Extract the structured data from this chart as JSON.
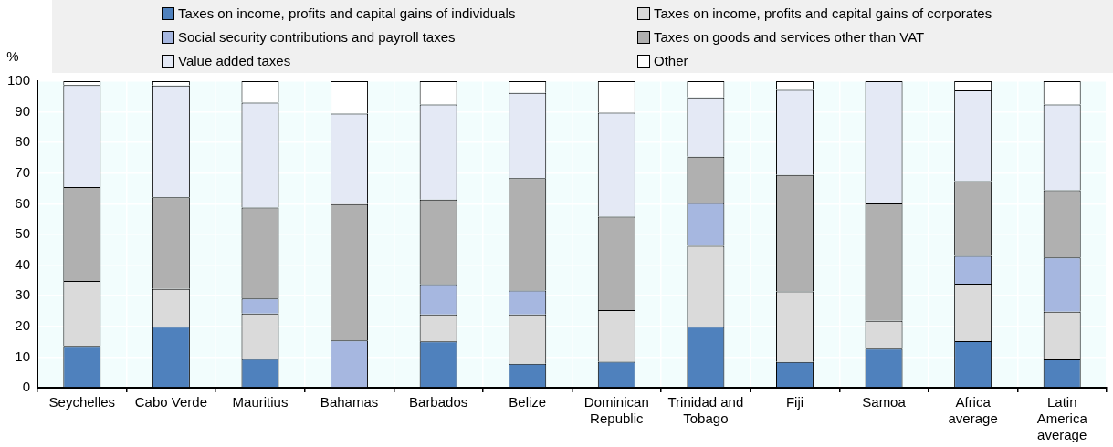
{
  "chart_data": {
    "type": "bar",
    "stacked": true,
    "ylabel": "%",
    "legend": "top",
    "grid": true,
    "categories": [
      "Seychelles",
      "Cabo Verde",
      "Mauritius",
      "Bahamas",
      "Barbados",
      "Belize",
      "Dominican Republic",
      "Trinidad and Tobago",
      "Fiji",
      "Samoa",
      "Africa average",
      "Latin America average"
    ],
    "ylim": [
      0,
      100
    ],
    "yticks": [
      0,
      10,
      20,
      30,
      40,
      50,
      60,
      70,
      80,
      90,
      100
    ],
    "series": [
      {
        "name": "Taxes on income, profits and capital gains of individuals",
        "color": "#4f81bd",
        "values": [
          13.6,
          19.9,
          9.4,
          0,
          15.1,
          7.8,
          8.5,
          19.9,
          8.4,
          12.7,
          15.2,
          9.2
        ]
      },
      {
        "name": "Taxes on income, profits and capital gains of corporates",
        "color": "#dadada",
        "values": [
          21.2,
          12.3,
          14.8,
          0,
          8.8,
          16.1,
          16.8,
          26.4,
          23.0,
          9.1,
          18.7,
          15.6
        ]
      },
      {
        "name": "Social security contributions and payroll taxes",
        "color": "#a6b7e0",
        "values": [
          0,
          0,
          4.9,
          15.4,
          9.9,
          7.8,
          0,
          14.0,
          0,
          0,
          9.1,
          17.7
        ]
      },
      {
        "name": "Taxes on goods and services other than VAT",
        "color": "#b0b0b0",
        "values": [
          30.7,
          29.9,
          29.7,
          44.5,
          27.6,
          36.7,
          30.5,
          15.1,
          38.0,
          38.3,
          24.4,
          21.9
        ]
      },
      {
        "name": "Value added taxes",
        "color": "#e4e9f5",
        "values": [
          33.2,
          36.5,
          34.2,
          29.5,
          31.0,
          27.8,
          33.9,
          19.3,
          27.8,
          39.9,
          29.6,
          28.0
        ]
      },
      {
        "name": "Other",
        "color": "#ffffff",
        "values": [
          1.3,
          1.4,
          7.0,
          10.6,
          7.6,
          3.8,
          10.3,
          5.3,
          2.8,
          0,
          3.0,
          7.6
        ]
      }
    ]
  }
}
